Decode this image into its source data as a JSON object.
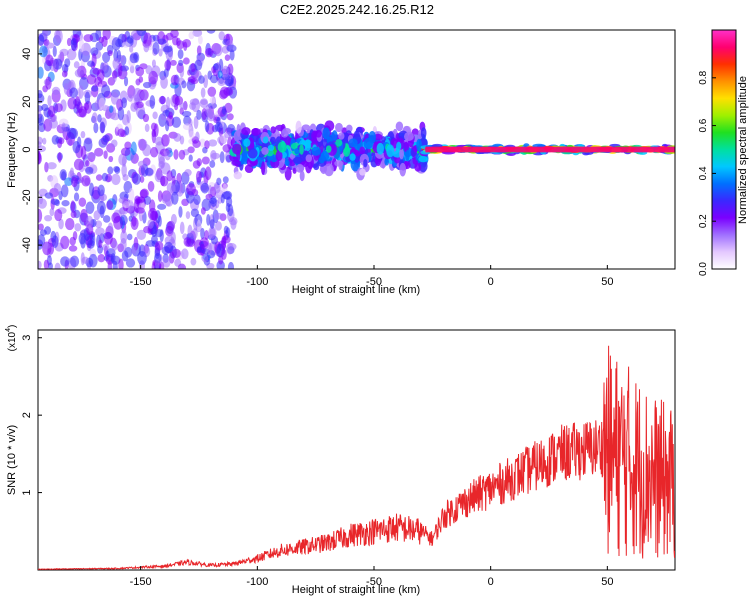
{
  "title": "C2E2.2025.242.16.25.R12",
  "colors": {
    "snr_line": "#e8262a",
    "colorbar": [
      "#ffffff",
      "#e4c8ff",
      "#a070ff",
      "#7a00ff",
      "#3a28ff",
      "#0070ff",
      "#00c8ff",
      "#00e0a0",
      "#20e020",
      "#a0f000",
      "#ffe000",
      "#ff9000",
      "#ff3000",
      "#ff0070",
      "#ff30c8"
    ]
  },
  "chart_data": [
    {
      "type": "heatmap",
      "title": "C2E2.2025.242.16.25.R12",
      "xlabel": "Height of straight line (km)",
      "ylabel": "Frequency (Hz)",
      "xlim": [
        -194,
        79
      ],
      "ylim": [
        -50,
        50
      ],
      "x_ticks": [
        -150,
        -100,
        -50,
        0,
        50
      ],
      "y_ticks": [
        -40,
        -20,
        0,
        20,
        40
      ],
      "colorbar": {
        "label": "Normalized spectral amplitude",
        "range": [
          0,
          1
        ],
        "ticks": [
          "0.0",
          "0.2",
          "0.4",
          "0.6",
          "0.8"
        ]
      },
      "features": [
        {
          "x": [
            -194,
            -110
          ],
          "freq_spread": [
            -50,
            50
          ],
          "amplitude": 0.25
        },
        {
          "x": [
            -110,
            -28
          ],
          "freq_spread": [
            -12,
            12
          ],
          "amplitude": 0.45
        },
        {
          "x": [
            -28,
            79
          ],
          "freq_spread": [
            -2,
            2
          ],
          "amplitude": 0.9
        }
      ]
    },
    {
      "type": "line",
      "xlabel": "Height of straight line (km)",
      "ylabel": "SNR (10 * v/v)",
      "y_multiplier": "(x10",
      "y_multiplier_exp": "4",
      "y_multiplier_close": ")",
      "xlim": [
        -194,
        79
      ],
      "ylim": [
        0,
        3.1
      ],
      "x_ticks": [
        -150,
        -100,
        -50,
        0,
        50
      ],
      "y_ticks": [
        1,
        2,
        3
      ],
      "series": [
        {
          "color": "#e8262a",
          "x": [
            -194,
            -160,
            -140,
            -130,
            -120,
            -110,
            -100,
            -90,
            -80,
            -70,
            -60,
            -50,
            -40,
            -30,
            -25,
            -20,
            -10,
            0,
            10,
            20,
            30,
            40,
            48,
            52,
            60,
            70,
            79
          ],
          "y": [
            0.01,
            0.02,
            0.05,
            0.1,
            0.06,
            0.08,
            0.15,
            0.25,
            0.3,
            0.35,
            0.45,
            0.5,
            0.55,
            0.5,
            0.4,
            0.7,
            0.9,
            1.05,
            1.2,
            1.35,
            1.5,
            1.55,
            1.6,
            1.5,
            1.4,
            1.2,
            1.1
          ]
        }
      ]
    }
  ]
}
